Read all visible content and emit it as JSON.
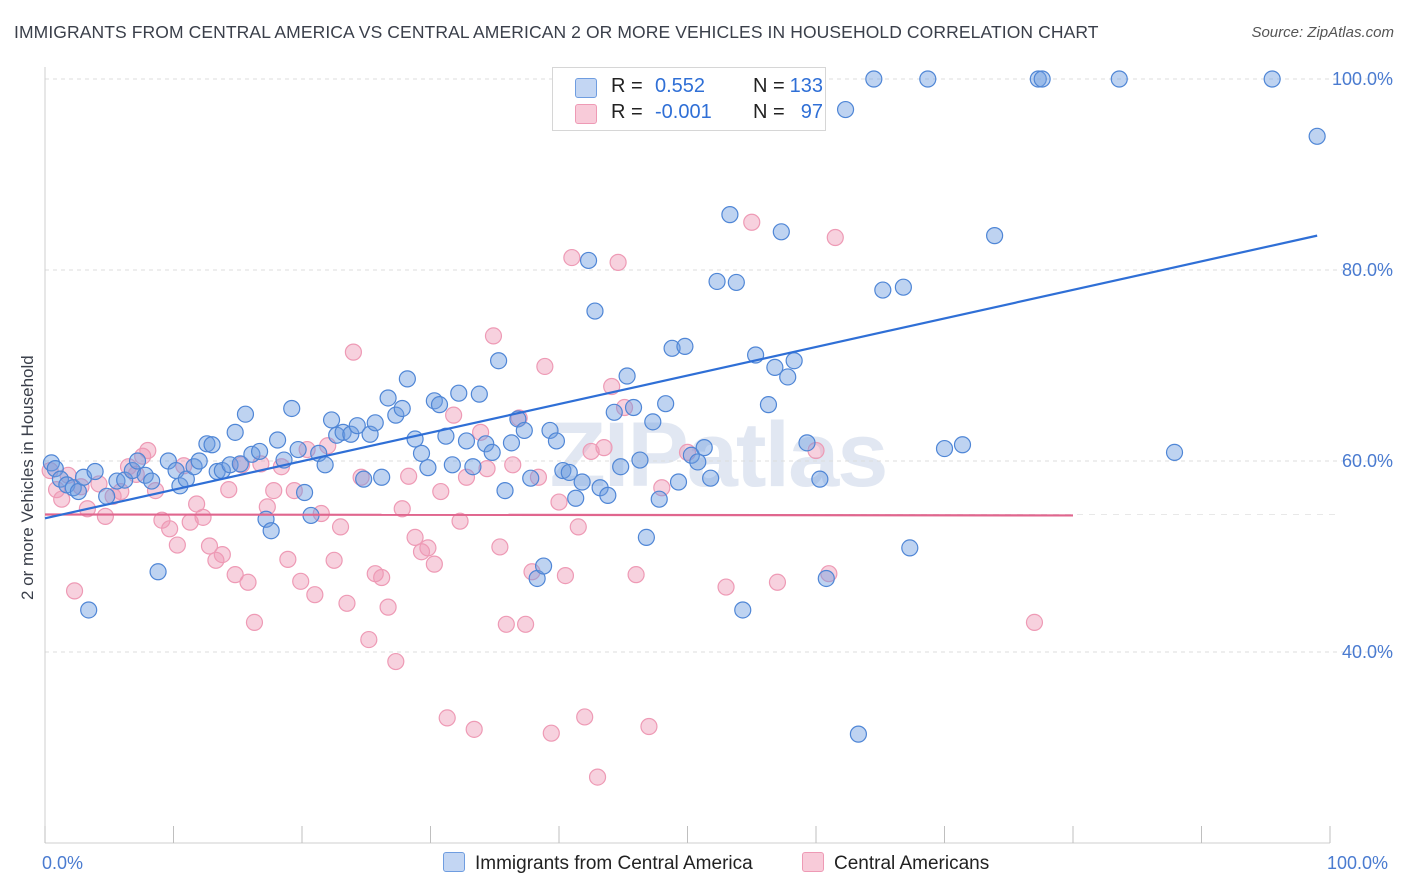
{
  "header": {
    "title": "IMMIGRANTS FROM CENTRAL AMERICA VS CENTRAL AMERICAN 2 OR MORE VEHICLES IN HOUSEHOLD CORRELATION CHART",
    "source": "Source: ZipAtlas.com"
  },
  "watermark": "ZIPatlas",
  "legend": {
    "rows": [
      {
        "r_label": "R =",
        "r_value": "0.552",
        "n_label": "N =",
        "n_value": "133"
      },
      {
        "r_label": "R =",
        "r_value": "-0.001",
        "n_label": "N =",
        "n_value": "97"
      }
    ]
  },
  "bottom_legend": {
    "series1": "Immigrants from Central America",
    "series2": "Central Americans"
  },
  "axes": {
    "x_min_label": "0.0%",
    "x_max_label": "100.0%",
    "ylabel": "2 or more Vehicles in Household"
  },
  "chart_data": {
    "type": "scatter",
    "title": "IMMIGRANTS FROM CENTRAL AMERICA VS CENTRAL AMERICAN 2 OR MORE VEHICLES IN HOUSEHOLD CORRELATION CHART",
    "xlabel": "",
    "ylabel": "2 or more Vehicles in Household",
    "xlim": [
      0,
      100
    ],
    "ylim": [
      20,
      102
    ],
    "yticks": [
      40,
      60,
      80,
      100
    ],
    "ytick_labels": [
      "40.0%",
      "60.0%",
      "80.0%",
      "100.0%"
    ],
    "colors": {
      "series1": "#6f9de0",
      "series2": "#ee9ab5",
      "line1": "#2f6fd6",
      "line2": "#e0668e",
      "tick_text": "#4a7bd0"
    },
    "series": [
      {
        "name": "Immigrants from Central America",
        "R": 0.552,
        "N": 133,
        "trend": {
          "x0": 0,
          "y0": 54.0,
          "x1": 99,
          "y1": 83.6
        },
        "points": [
          [
            0.5,
            59.8
          ],
          [
            0.8,
            59.2
          ],
          [
            1.2,
            58.1
          ],
          [
            1.7,
            57.5
          ],
          [
            2.2,
            57.2
          ],
          [
            2.6,
            56.8
          ],
          [
            3.0,
            58.3
          ],
          [
            3.4,
            44.4
          ],
          [
            3.9,
            58.9
          ],
          [
            4.8,
            56.3
          ],
          [
            5.6,
            57.9
          ],
          [
            6.2,
            58.0
          ],
          [
            6.8,
            59.0
          ],
          [
            7.2,
            60.0
          ],
          [
            7.8,
            58.5
          ],
          [
            8.3,
            57.9
          ],
          [
            8.8,
            48.4
          ],
          [
            9.6,
            60.0
          ],
          [
            10.2,
            59.0
          ],
          [
            10.5,
            57.4
          ],
          [
            11.0,
            58.1
          ],
          [
            11.6,
            59.4
          ],
          [
            12.0,
            60.0
          ],
          [
            12.6,
            61.8
          ],
          [
            13.0,
            61.7
          ],
          [
            13.4,
            58.9
          ],
          [
            13.8,
            59.0
          ],
          [
            14.4,
            59.6
          ],
          [
            14.8,
            63.0
          ],
          [
            15.2,
            59.7
          ],
          [
            15.6,
            64.9
          ],
          [
            16.1,
            60.7
          ],
          [
            16.7,
            61.0
          ],
          [
            17.2,
            53.9
          ],
          [
            17.6,
            52.7
          ],
          [
            18.1,
            62.2
          ],
          [
            18.6,
            60.1
          ],
          [
            19.2,
            65.5
          ],
          [
            19.7,
            61.2
          ],
          [
            20.2,
            56.7
          ],
          [
            20.7,
            54.3
          ],
          [
            21.3,
            60.8
          ],
          [
            21.8,
            59.6
          ],
          [
            22.3,
            64.3
          ],
          [
            22.7,
            62.7
          ],
          [
            23.2,
            63.0
          ],
          [
            23.8,
            62.8
          ],
          [
            24.3,
            63.7
          ],
          [
            24.8,
            58.1
          ],
          [
            25.3,
            62.8
          ],
          [
            25.7,
            64.0
          ],
          [
            26.2,
            58.3
          ],
          [
            26.7,
            66.6
          ],
          [
            27.3,
            64.8
          ],
          [
            27.8,
            65.5
          ],
          [
            28.2,
            68.6
          ],
          [
            28.8,
            62.3
          ],
          [
            29.3,
            60.8
          ],
          [
            29.8,
            59.3
          ],
          [
            30.3,
            66.3
          ],
          [
            30.7,
            65.9
          ],
          [
            31.2,
            62.6
          ],
          [
            31.7,
            59.6
          ],
          [
            32.2,
            67.1
          ],
          [
            32.8,
            62.1
          ],
          [
            33.3,
            59.4
          ],
          [
            33.8,
            67.0
          ],
          [
            34.3,
            61.8
          ],
          [
            34.8,
            60.9
          ],
          [
            35.3,
            70.5
          ],
          [
            35.8,
            56.9
          ],
          [
            36.3,
            61.9
          ],
          [
            36.8,
            64.4
          ],
          [
            37.3,
            63.2
          ],
          [
            37.8,
            58.2
          ],
          [
            38.3,
            47.7
          ],
          [
            38.8,
            49.0
          ],
          [
            39.3,
            63.2
          ],
          [
            39.8,
            62.1
          ],
          [
            40.3,
            59.0
          ],
          [
            40.8,
            58.8
          ],
          [
            41.3,
            56.1
          ],
          [
            41.8,
            57.8
          ],
          [
            42.3,
            81.0
          ],
          [
            42.8,
            75.7
          ],
          [
            43.2,
            57.2
          ],
          [
            43.8,
            56.4
          ],
          [
            44.3,
            65.1
          ],
          [
            44.8,
            59.4
          ],
          [
            45.3,
            68.9
          ],
          [
            45.8,
            65.6
          ],
          [
            46.3,
            60.1
          ],
          [
            46.8,
            52.0
          ],
          [
            47.3,
            64.1
          ],
          [
            47.8,
            56.0
          ],
          [
            48.3,
            66.0
          ],
          [
            48.8,
            71.8
          ],
          [
            49.3,
            57.8
          ],
          [
            49.8,
            72.0
          ],
          [
            50.3,
            60.6
          ],
          [
            50.8,
            59.9
          ],
          [
            51.3,
            61.4
          ],
          [
            51.8,
            58.2
          ],
          [
            52.3,
            78.8
          ],
          [
            53.3,
            85.8
          ],
          [
            53.8,
            78.7
          ],
          [
            54.3,
            44.4
          ],
          [
            55.3,
            71.1
          ],
          [
            56.3,
            65.9
          ],
          [
            56.8,
            69.8
          ],
          [
            57.3,
            84.0
          ],
          [
            57.8,
            68.8
          ],
          [
            58.3,
            70.5
          ],
          [
            59.3,
            61.9
          ],
          [
            60.3,
            58.1
          ],
          [
            60.8,
            47.7
          ],
          [
            62.3,
            96.8
          ],
          [
            63.3,
            31.4
          ],
          [
            64.5,
            100.0
          ],
          [
            65.2,
            77.9
          ],
          [
            66.8,
            78.2
          ],
          [
            67.3,
            50.9
          ],
          [
            68.7,
            100.0
          ],
          [
            70.0,
            61.3
          ],
          [
            71.4,
            61.7
          ],
          [
            73.9,
            83.6
          ],
          [
            77.3,
            100.0
          ],
          [
            77.6,
            100.0
          ],
          [
            83.6,
            100.0
          ],
          [
            95.5,
            100.0
          ],
          [
            99.0,
            94.0
          ],
          [
            87.9,
            60.9
          ]
        ]
      },
      {
        "name": "Central Americans",
        "R": -0.001,
        "N": 97,
        "trend": {
          "x0": 0,
          "y0": 54.4,
          "x1": 80,
          "y1": 54.3
        },
        "points": [
          [
            0.4,
            59.0
          ],
          [
            0.9,
            57.0
          ],
          [
            1.3,
            56.0
          ],
          [
            1.8,
            58.5
          ],
          [
            2.3,
            46.4
          ],
          [
            2.8,
            57.3
          ],
          [
            3.3,
            55.0
          ],
          [
            4.2,
            57.6
          ],
          [
            4.7,
            54.2
          ],
          [
            5.3,
            56.3
          ],
          [
            5.9,
            56.8
          ],
          [
            6.5,
            59.4
          ],
          [
            7.1,
            58.6
          ],
          [
            7.6,
            60.5
          ],
          [
            8.0,
            61.1
          ],
          [
            8.6,
            56.9
          ],
          [
            9.1,
            53.8
          ],
          [
            9.7,
            52.9
          ],
          [
            10.3,
            51.2
          ],
          [
            10.8,
            59.5
          ],
          [
            11.3,
            53.6
          ],
          [
            11.8,
            55.5
          ],
          [
            12.3,
            54.1
          ],
          [
            12.8,
            51.1
          ],
          [
            13.3,
            49.6
          ],
          [
            13.8,
            50.2
          ],
          [
            14.3,
            57.0
          ],
          [
            14.8,
            48.1
          ],
          [
            15.3,
            59.6
          ],
          [
            15.8,
            47.3
          ],
          [
            16.3,
            43.1
          ],
          [
            16.8,
            59.7
          ],
          [
            17.3,
            55.2
          ],
          [
            17.8,
            56.9
          ],
          [
            18.4,
            59.4
          ],
          [
            18.9,
            49.7
          ],
          [
            19.4,
            56.9
          ],
          [
            19.9,
            47.4
          ],
          [
            20.4,
            61.2
          ],
          [
            21.0,
            46.0
          ],
          [
            21.5,
            54.5
          ],
          [
            22.0,
            61.6
          ],
          [
            22.5,
            49.6
          ],
          [
            23.0,
            53.1
          ],
          [
            23.5,
            45.1
          ],
          [
            24.0,
            71.4
          ],
          [
            24.6,
            58.3
          ],
          [
            25.2,
            41.3
          ],
          [
            25.7,
            48.2
          ],
          [
            26.2,
            47.8
          ],
          [
            26.7,
            44.7
          ],
          [
            27.3,
            39.0
          ],
          [
            27.8,
            55.0
          ],
          [
            28.3,
            58.4
          ],
          [
            28.8,
            52.0
          ],
          [
            29.3,
            50.5
          ],
          [
            29.8,
            50.9
          ],
          [
            30.3,
            49.2
          ],
          [
            30.8,
            56.8
          ],
          [
            31.3,
            33.1
          ],
          [
            31.8,
            64.8
          ],
          [
            32.3,
            53.7
          ],
          [
            32.8,
            58.3
          ],
          [
            33.4,
            31.9
          ],
          [
            33.9,
            63.0
          ],
          [
            34.4,
            59.2
          ],
          [
            34.9,
            73.1
          ],
          [
            35.4,
            51.0
          ],
          [
            35.9,
            42.9
          ],
          [
            36.4,
            59.6
          ],
          [
            36.9,
            64.5
          ],
          [
            37.4,
            42.9
          ],
          [
            37.9,
            48.4
          ],
          [
            38.4,
            58.3
          ],
          [
            38.9,
            69.9
          ],
          [
            39.4,
            31.5
          ],
          [
            40.0,
            55.7
          ],
          [
            40.5,
            48.0
          ],
          [
            41.0,
            81.3
          ],
          [
            41.5,
            53.1
          ],
          [
            42.0,
            33.2
          ],
          [
            42.5,
            61.0
          ],
          [
            43.0,
            26.9
          ],
          [
            43.5,
            61.4
          ],
          [
            44.1,
            67.8
          ],
          [
            44.6,
            80.8
          ],
          [
            45.1,
            65.6
          ],
          [
            46.0,
            48.1
          ],
          [
            47.0,
            32.2
          ],
          [
            48.0,
            57.2
          ],
          [
            50.0,
            60.9
          ],
          [
            53.0,
            46.8
          ],
          [
            55.0,
            85.0
          ],
          [
            57.0,
            47.3
          ],
          [
            60.0,
            61.1
          ],
          [
            61.0,
            48.2
          ],
          [
            61.5,
            83.4
          ],
          [
            77.0,
            43.1
          ]
        ]
      }
    ]
  }
}
